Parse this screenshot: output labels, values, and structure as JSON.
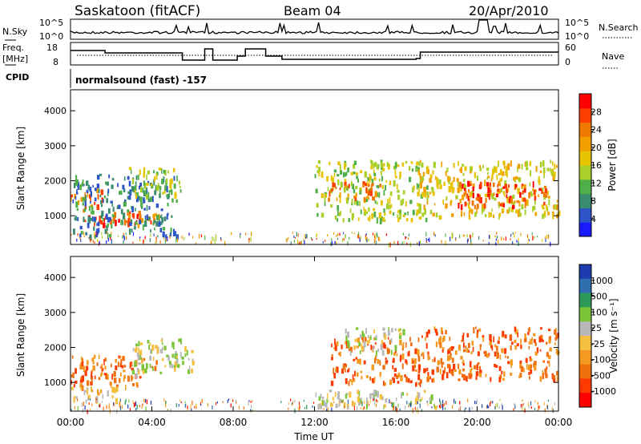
{
  "header": {
    "station": "Saskatoon (fitACF)",
    "beam": "Beam 04",
    "date": "20/Apr/2010"
  },
  "status_panels": {
    "nsky": {
      "label": "N.Sky",
      "left_ticks": [
        "10^5",
        "10^0"
      ],
      "right_ticks": [
        "10^5",
        "10^0"
      ],
      "right_label": "N.Search"
    },
    "freq": {
      "label_line1": "Freq.",
      "label_line2": "[MHz]",
      "left_ticks": [
        "18",
        "8"
      ],
      "right_ticks": [
        "60",
        "0"
      ],
      "right_label": "Nave"
    },
    "cpid": {
      "label": "CPID",
      "text": "normalsound (fast) -157"
    }
  },
  "chart_data": [
    {
      "type": "heatmap",
      "name": "Power",
      "ylabel": "Slant Range [km]",
      "yticks": [
        1000,
        2000,
        3000,
        4000
      ],
      "ylim": [
        180,
        4600
      ],
      "xlim": [
        0,
        24
      ],
      "colorbar": {
        "label": "Power [dB]",
        "ticks": [
          "4",
          "8",
          "12",
          "16",
          "20",
          "24",
          "28"
        ],
        "colors": [
          "#1a1aff",
          "#2e55c8",
          "#3a8c6e",
          "#4fb04a",
          "#a8cf2a",
          "#e8c400",
          "#f2a000",
          "#f07a00",
          "#ff4000",
          "#ff0000"
        ]
      },
      "regions": [
        {
          "t0": 0.0,
          "t1": 1.6,
          "r0": 1300,
          "r1": 1800,
          "level": 7
        },
        {
          "t0": 0.6,
          "t1": 3.6,
          "r0": 800,
          "r1": 1200,
          "level": 8
        },
        {
          "t0": 2.6,
          "t1": 4.4,
          "r0": 700,
          "r1": 1100,
          "level": 7
        },
        {
          "t0": 0.0,
          "t1": 5.2,
          "r0": 450,
          "r1": 2200,
          "level": 2
        },
        {
          "t0": 2.8,
          "t1": 5.4,
          "r0": 1600,
          "r1": 2400,
          "level": 4
        },
        {
          "t0": 12.0,
          "t1": 17.5,
          "r0": 900,
          "r1": 2600,
          "level": 4
        },
        {
          "t0": 12.6,
          "t1": 15.5,
          "r0": 1500,
          "r1": 2000,
          "level": 7
        },
        {
          "t0": 17.0,
          "t1": 24.0,
          "r0": 1000,
          "r1": 2600,
          "level": 5
        },
        {
          "t0": 19.0,
          "t1": 23.5,
          "r0": 1300,
          "r1": 2000,
          "level": 8
        }
      ]
    },
    {
      "type": "heatmap",
      "name": "Velocity",
      "ylabel": "Slant Range [km]",
      "yticks": [
        1000,
        2000,
        3000,
        4000
      ],
      "ylim": [
        180,
        4600
      ],
      "xlim": [
        0,
        24
      ],
      "xticks": [
        "00:00",
        "04:00",
        "08:00",
        "12:00",
        "16:00",
        "20:00",
        "00:00"
      ],
      "xlabel": "Time UT",
      "colorbar": {
        "label": "Velocity [m s⁻¹]",
        "ticks": [
          "1000",
          "500",
          "100",
          "25",
          "-25",
          "-100",
          "-500",
          "-1000"
        ],
        "colors": [
          "#1f3bb0",
          "#2f6fb0",
          "#2e9a5a",
          "#7cc43a",
          "#b8b8b8",
          "#f5c040",
          "#f59a20",
          "#f07010",
          "#ff3a00",
          "#ff0000"
        ]
      },
      "regions": [
        {
          "t0": 0.0,
          "t1": 4.2,
          "r0": 900,
          "r1": 1800,
          "level": 7
        },
        {
          "t0": 0.0,
          "t1": 2.5,
          "r0": 450,
          "r1": 900,
          "level": 5
        },
        {
          "t0": 3.0,
          "t1": 6.0,
          "r0": 1200,
          "r1": 2300,
          "level": 4
        },
        {
          "t0": 12.8,
          "t1": 17.2,
          "r0": 1000,
          "r1": 2300,
          "level": 7
        },
        {
          "t0": 13.5,
          "t1": 16.5,
          "r0": 1900,
          "r1": 2600,
          "level": 4
        },
        {
          "t0": 17.2,
          "t1": 24.0,
          "r0": 1100,
          "r1": 2600,
          "level": 7
        },
        {
          "t0": 12.0,
          "t1": 18.0,
          "r0": 300,
          "r1": 800,
          "level": 4
        }
      ]
    }
  ]
}
